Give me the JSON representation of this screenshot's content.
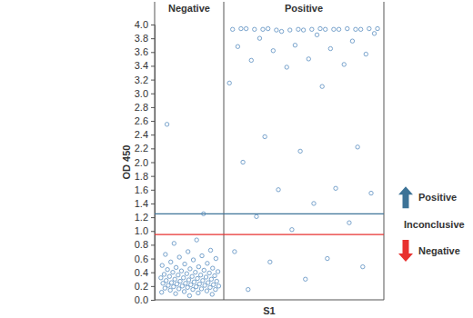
{
  "chart_data": {
    "type": "strip",
    "x_label": "S1",
    "y_label": "OD 450",
    "ylim": [
      0,
      4.0
    ],
    "yticks": [
      {
        "value": 0,
        "label": "0.0"
      },
      {
        "value": 0.2,
        "label": "0.2"
      },
      {
        "value": 0.4,
        "label": "0.4"
      },
      {
        "value": 0.6,
        "label": "0.6"
      },
      {
        "value": 0.8,
        "label": "0.8"
      },
      {
        "value": 1,
        "label": "1.0"
      },
      {
        "value": 1.2,
        "label": "1.2"
      },
      {
        "value": 1.4,
        "label": "1.4"
      },
      {
        "value": 1.6,
        "label": "1.6"
      },
      {
        "value": 1.8,
        "label": "1.8"
      },
      {
        "value": 2,
        "label": "2.0"
      },
      {
        "value": 2.2,
        "label": "2.2"
      },
      {
        "value": 2.4,
        "label": "2.4"
      },
      {
        "value": 2.6,
        "label": "2.6"
      },
      {
        "value": 2.8,
        "label": "2.8"
      },
      {
        "value": 3,
        "label": "3.0"
      },
      {
        "value": 3.2,
        "label": "3.2"
      },
      {
        "value": 3.4,
        "label": "3.4"
      },
      {
        "value": 3.6,
        "label": "3.6"
      },
      {
        "value": 3.8,
        "label": "3.8"
      },
      {
        "value": 4,
        "label": "4.0"
      }
    ],
    "grid": false,
    "marker": "open-circle",
    "series": [
      {
        "name": "Negative",
        "color": "#5b8ec0",
        "values": [
          0.87,
          0.82,
          0.72,
          0.7,
          0.66,
          0.64,
          0.62,
          0.6,
          0.58,
          0.55,
          0.53,
          0.52,
          0.5,
          0.48,
          0.47,
          0.46,
          0.45,
          0.44,
          0.43,
          0.42,
          0.41,
          0.4,
          0.4,
          0.39,
          0.38,
          0.37,
          0.36,
          0.36,
          0.35,
          0.34,
          0.34,
          0.33,
          0.32,
          0.32,
          0.31,
          0.3,
          0.3,
          0.29,
          0.28,
          0.28,
          0.27,
          0.27,
          0.26,
          0.25,
          0.25,
          0.24,
          0.24,
          0.23,
          0.23,
          0.22,
          0.22,
          0.21,
          0.21,
          0.2,
          0.2,
          0.19,
          0.19,
          0.18,
          0.18,
          0.17,
          0.16,
          0.16,
          0.15,
          0.15,
          0.14,
          0.13,
          0.12,
          0.11,
          0.1,
          0.09,
          0.08,
          0.06,
          2.55,
          1.25
        ]
      },
      {
        "name": "Positive",
        "color": "#5b8ec0",
        "values": [
          3.94,
          3.94,
          3.93,
          3.93,
          3.93,
          3.94,
          3.93,
          3.92,
          3.94,
          3.93,
          3.93,
          3.94,
          3.92,
          3.93,
          3.93,
          3.94,
          3.93,
          3.92,
          3.94,
          3.93,
          3.9,
          3.87,
          3.85,
          3.8,
          3.76,
          3.7,
          3.68,
          3.65,
          3.62,
          3.57,
          3.5,
          3.48,
          3.42,
          3.38,
          3.15,
          3.1,
          2.37,
          2.22,
          2.16,
          2.0,
          1.62,
          1.6,
          1.55,
          1.4,
          1.21,
          1.12,
          1.02,
          0.7,
          0.6,
          0.55,
          0.48,
          0.3,
          0.15
        ]
      }
    ],
    "thresholds": [
      {
        "value": 1.25,
        "color": "#3d7397"
      },
      {
        "value": 0.95,
        "color": "#e8312f"
      }
    ],
    "annotations": [
      {
        "text": "Positive",
        "color": "#3d7397"
      },
      {
        "text": "Inconclusive"
      },
      {
        "text": "Negative",
        "color": "#e8312f"
      }
    ]
  }
}
